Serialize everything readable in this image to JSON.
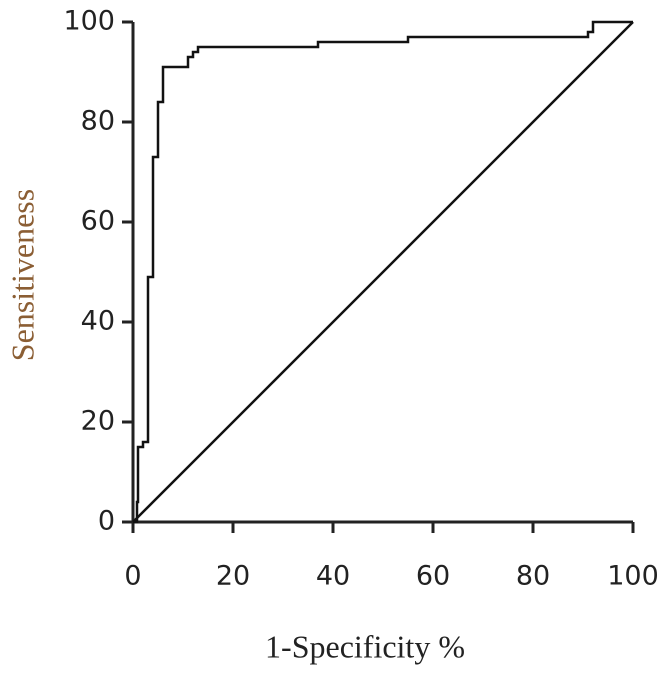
{
  "chart_data": {
    "type": "line",
    "xlabel": "1-Specificity %",
    "ylabel": "Sensitiveness",
    "ylabel_color": "#8b5e34",
    "xlabel_color": "#222222",
    "xlim": [
      0,
      100
    ],
    "ylim": [
      0,
      100
    ],
    "xticks": [
      0,
      20,
      40,
      60,
      80,
      100
    ],
    "yticks": [
      0,
      20,
      40,
      60,
      80,
      100
    ],
    "series": [
      {
        "color": "#111111",
        "x": [
          0,
          0.8,
          0.8,
          1,
          1,
          2,
          2,
          3,
          3,
          4,
          4,
          5,
          5,
          6,
          6,
          11,
          11,
          12,
          12,
          13,
          13,
          37,
          37,
          55,
          55,
          91,
          91,
          92,
          92,
          100
        ],
        "values": [
          0,
          0,
          4,
          4,
          15,
          15,
          16,
          16,
          49,
          49,
          73,
          73,
          84,
          84,
          91,
          91,
          93,
          93,
          94,
          94,
          95,
          95,
          96,
          96,
          97,
          97,
          98,
          98,
          100,
          100
        ]
      },
      {
        "color": "#111111",
        "x": [
          0,
          100
        ],
        "values": [
          0,
          100
        ]
      }
    ]
  }
}
